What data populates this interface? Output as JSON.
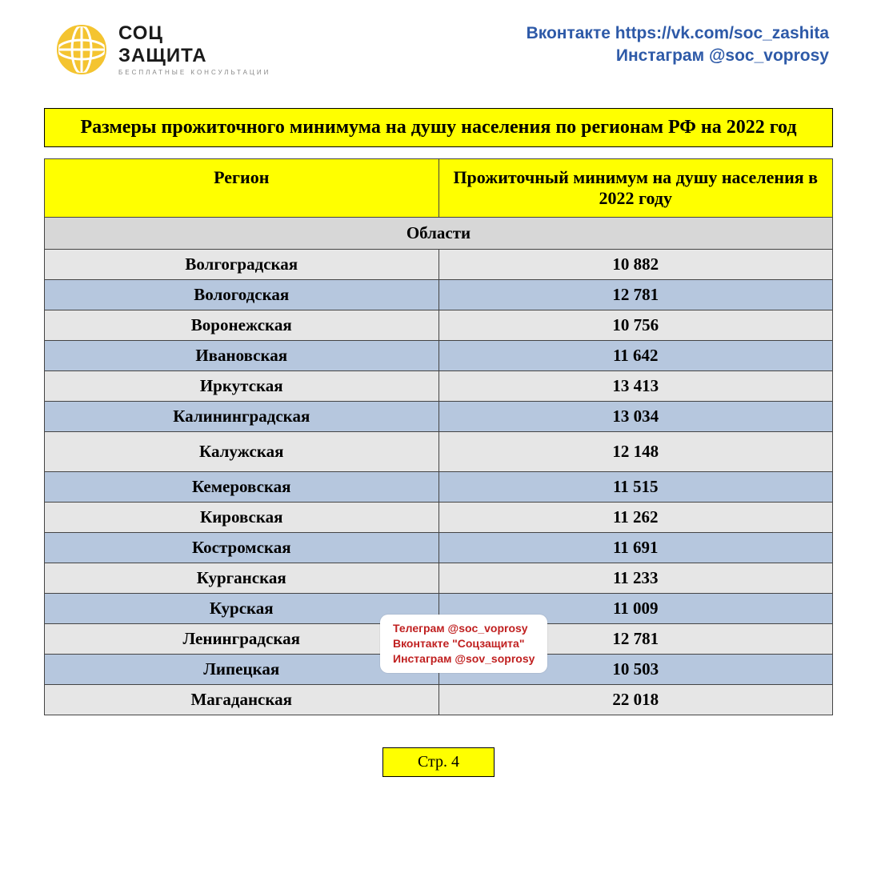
{
  "header": {
    "logo": {
      "line1": "СОЦ",
      "line2": "ЗАЩИТА",
      "sub": "БЕСПЛАТНЫЕ КОНСУЛЬТАЦИИ"
    },
    "social_line1": "Вконтакте https://vk.com/soc_zashita",
    "social_line2": "Инстаграм @soc_voprosy"
  },
  "title": "Размеры прожиточного минимума на душу населения по регионам РФ на 2022 год",
  "table": {
    "col1": "Регион",
    "col2": "Прожиточный минимум на душу населения в 2022 году",
    "section": "Области",
    "rows": [
      {
        "region": "Волгоградская",
        "value": "10 882"
      },
      {
        "region": "Вологодская",
        "value": "12 781"
      },
      {
        "region": "Воронежская",
        "value": "10 756"
      },
      {
        "region": "Ивановская",
        "value": "11 642"
      },
      {
        "region": "Иркутская",
        "value": "13 413"
      },
      {
        "region": "Калининградская",
        "value": "13 034"
      },
      {
        "region": "Калужская",
        "value": "12  148"
      },
      {
        "region": "Кемеровская",
        "value": "11 515"
      },
      {
        "region": "Кировская",
        "value": "11 262"
      },
      {
        "region": "Костромская",
        "value": "11 691"
      },
      {
        "region": "Курганская",
        "value": "11 233"
      },
      {
        "region": "Курская",
        "value": "11 009"
      },
      {
        "region": "Ленинградская",
        "value": "12 781"
      },
      {
        "region": "Липецкая",
        "value": "10 503"
      },
      {
        "region": "Магаданская",
        "value": "22 018"
      }
    ]
  },
  "overlay": {
    "l1": "Телеграм @soc_voprosy",
    "l2": "Вконтакте \"Соцзащита\"",
    "l3": "Инстаграм @sov_soprosy"
  },
  "watermark": {
    "l1": "СОЦ",
    "l2": "ЗАЩИТА"
  },
  "pager": "Стр. 4",
  "colors": {
    "yellow": "#ffff00",
    "row_light": "#e6e6e6",
    "row_blue": "#b6c7de",
    "section_gray": "#d7d7d7",
    "social_blue": "#2e5aa8",
    "overlay_red": "#c02020",
    "globe_yellow": "#f4c430"
  }
}
